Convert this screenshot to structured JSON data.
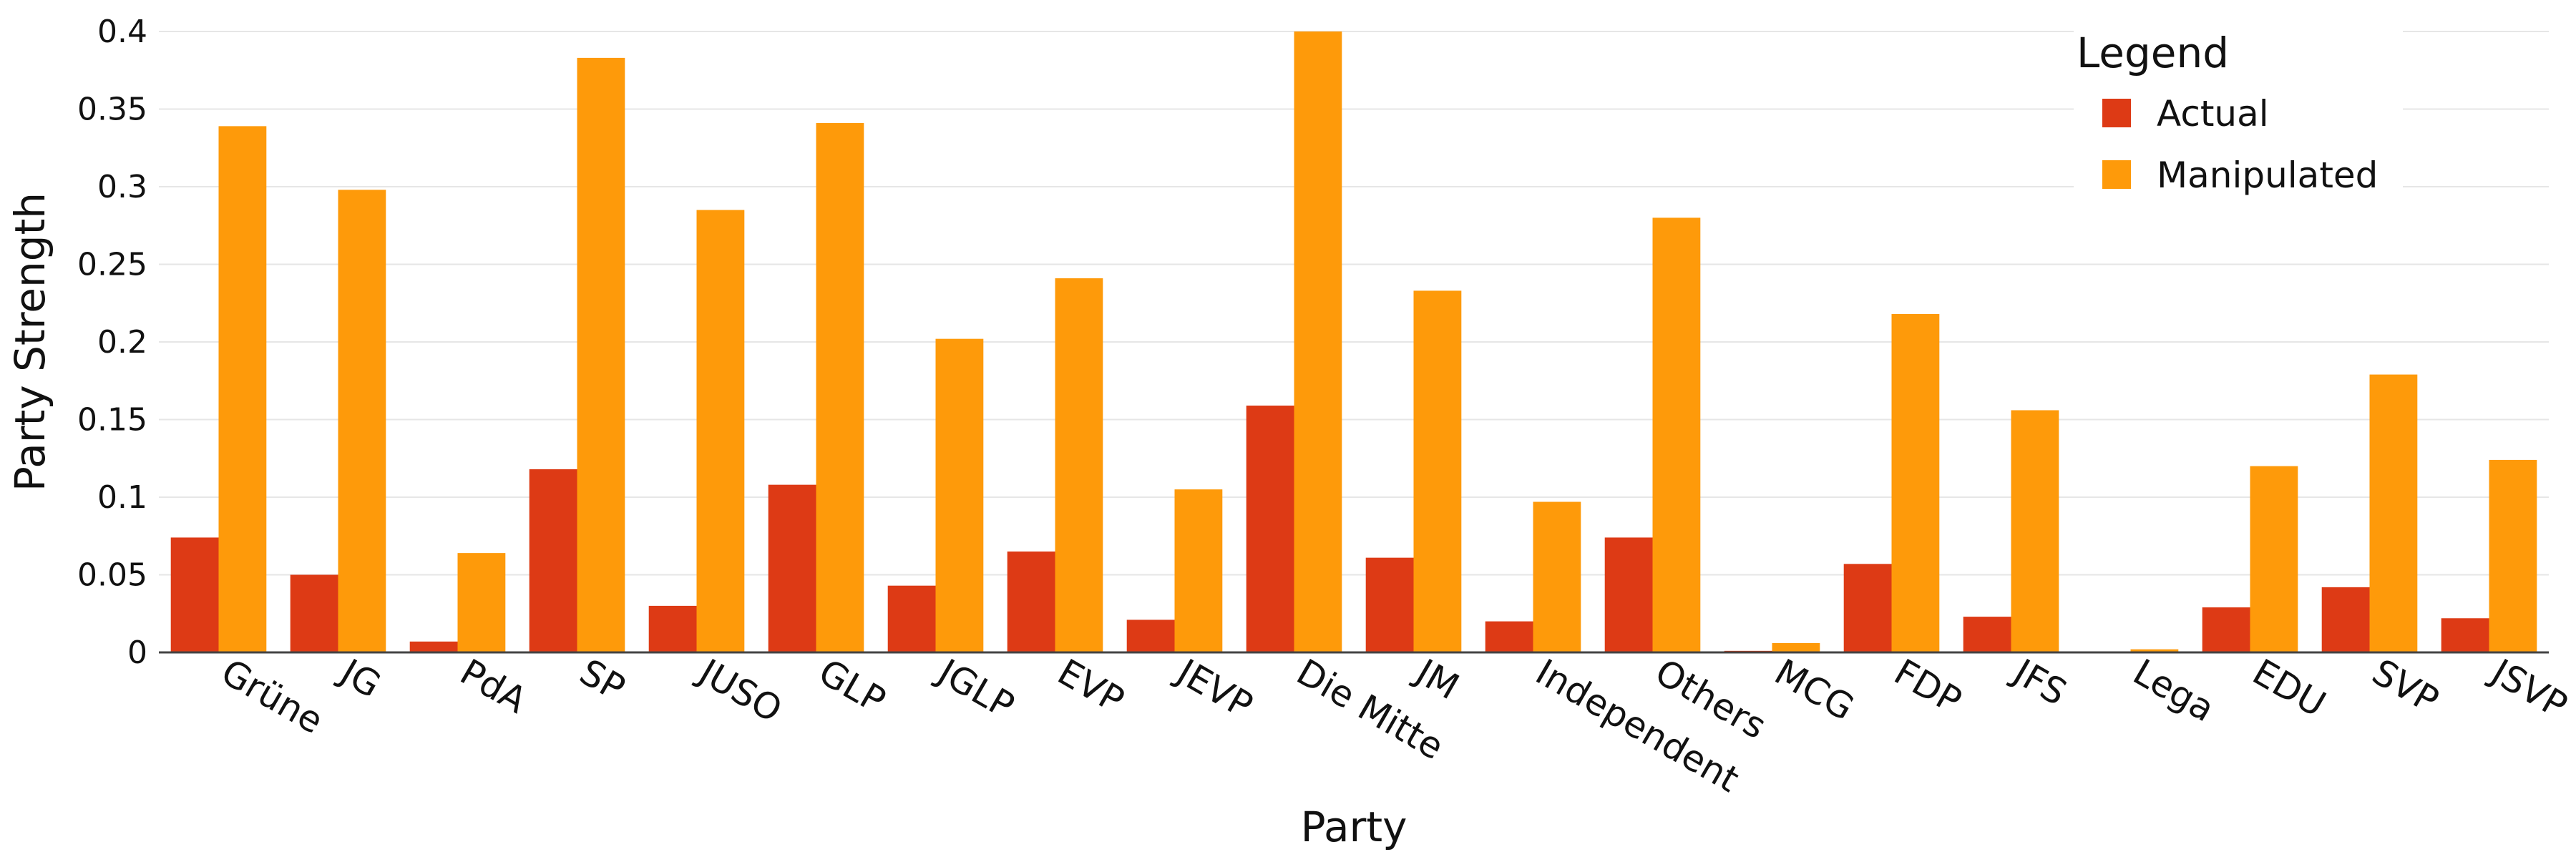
{
  "chart_data": {
    "type": "bar",
    "title": "",
    "xlabel": "Party",
    "ylabel": "Party Strength",
    "ylim": [
      0,
      0.4
    ],
    "yticks": [
      0,
      0.05,
      0.1,
      0.15,
      0.2,
      0.25,
      0.3,
      0.35,
      0.4
    ],
    "ytick_labels": [
      "0",
      "0.05",
      "0.1",
      "0.15",
      "0.2",
      "0.25",
      "0.3",
      "0.35",
      "0.4"
    ],
    "grid": true,
    "legend_position": "top-right",
    "legend_title": "Legend",
    "categories": [
      "Grüne",
      "JG",
      "PdA",
      "SP",
      "JUSO",
      "GLP",
      "JGLP",
      "EVP",
      "JEVP",
      "Die Mitte",
      "JM",
      "Independent",
      "Others",
      "MCG",
      "FDP",
      "JFS",
      "Lega",
      "EDU",
      "SVP",
      "JSVP"
    ],
    "series": [
      {
        "name": "Actual",
        "color": "#dd3a15",
        "values": [
          0.074,
          0.05,
          0.007,
          0.118,
          0.03,
          0.108,
          0.043,
          0.065,
          0.021,
          0.159,
          0.061,
          0.02,
          0.074,
          0.001,
          0.057,
          0.023,
          0.0,
          0.029,
          0.042,
          0.022
        ]
      },
      {
        "name": "Manipulated",
        "color": "#fe9a0a",
        "values": [
          0.339,
          0.298,
          0.064,
          0.383,
          0.285,
          0.341,
          0.202,
          0.241,
          0.105,
          0.4,
          0.233,
          0.097,
          0.28,
          0.006,
          0.218,
          0.156,
          0.002,
          0.12,
          0.179,
          0.124
        ]
      }
    ]
  }
}
